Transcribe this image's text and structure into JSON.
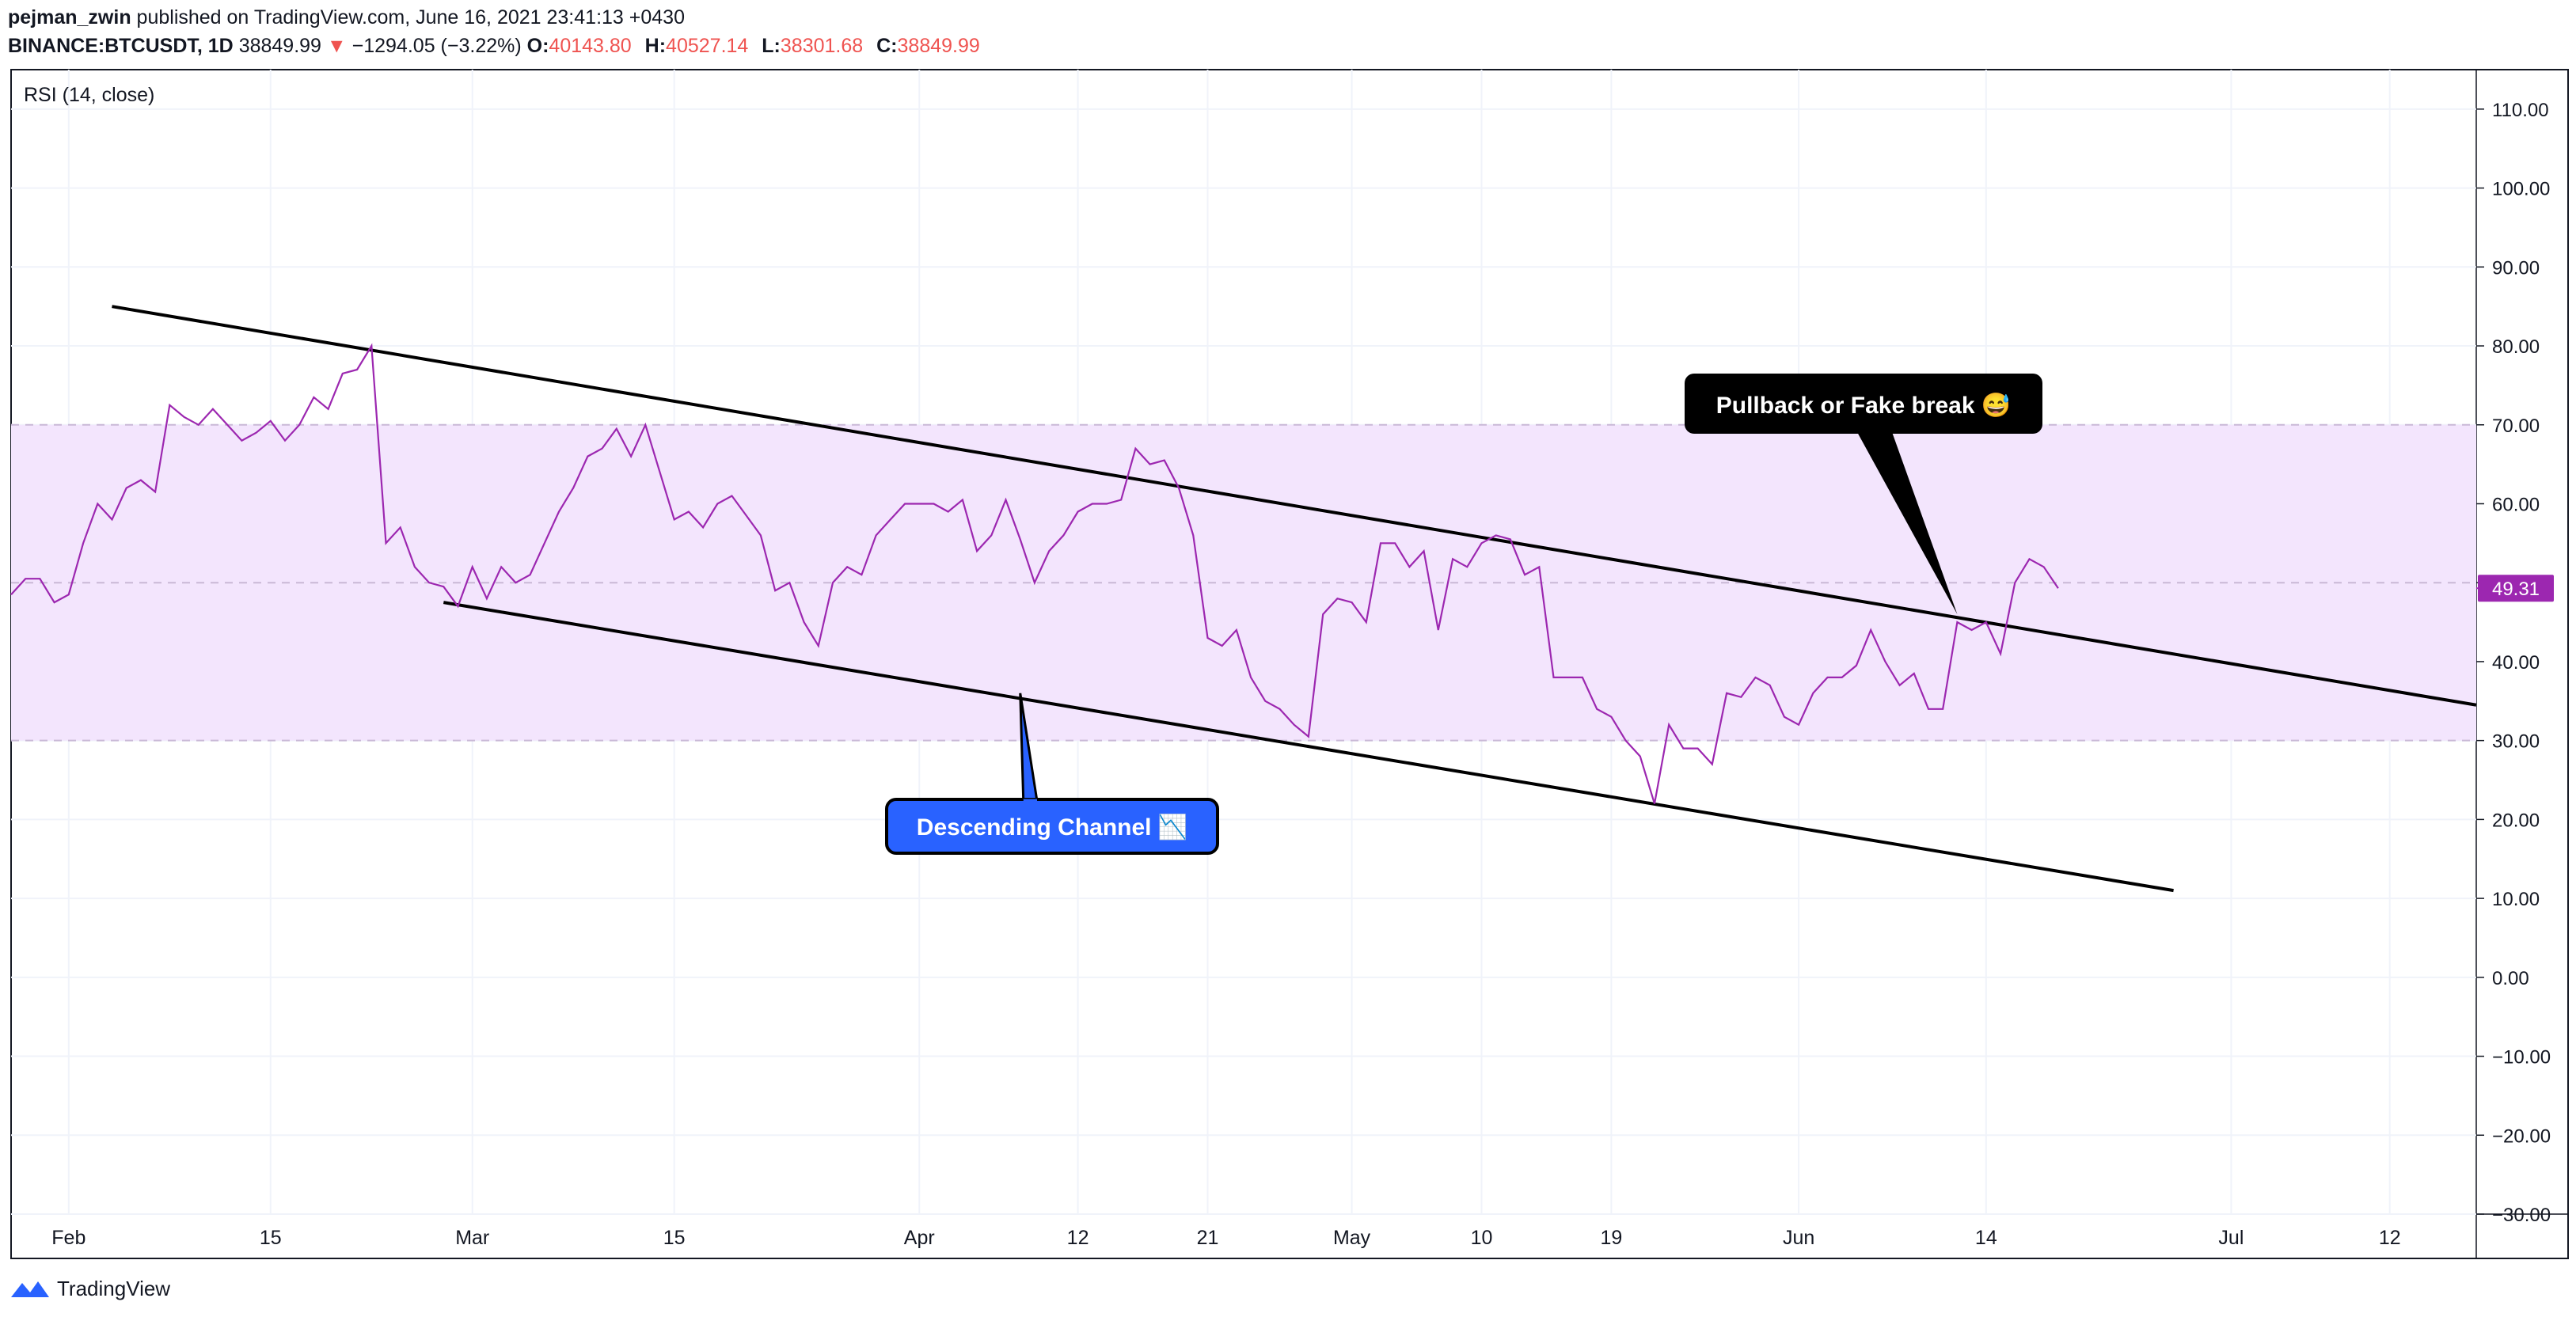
{
  "header": {
    "author": "pejman_zwin",
    "published": "published on TradingView.com, June 16, 2021 23:41:13 +0430",
    "symbol": "BINANCE:BTCUSDT, 1D",
    "last": "38849.99",
    "change": "−1294.05 (−3.22%)",
    "o_label": "O:",
    "o": "40143.80",
    "h_label": "H:",
    "h": "40527.14",
    "l_label": "L:",
    "l": "38301.68",
    "c_label": "C:",
    "c": "38849.99"
  },
  "footer": {
    "brand": "TradingView"
  },
  "colors": {
    "rsi": "#9c27b0",
    "band": "#f3e5fd",
    "band_line": "#c9b8d6",
    "channel": "#000000",
    "bubble_dark": "#000000",
    "bubble_blue": "#2962ff",
    "price_tag": "#9c27b0"
  },
  "chart_data": {
    "type": "line",
    "title": "RSI (14, close)",
    "ylim": [
      -30,
      115
    ],
    "yticks": [
      "110.00",
      "100.00",
      "90.00",
      "80.00",
      "70.00",
      "60.00",
      "50.00",
      "40.00",
      "30.00",
      "20.00",
      "10.00",
      "0.00",
      "−10.00",
      "−20.00",
      "−30.00"
    ],
    "ytick_values": [
      110,
      100,
      90,
      80,
      70,
      60,
      50,
      40,
      30,
      20,
      10,
      0,
      -10,
      -20,
      -30
    ],
    "xticks": [
      {
        "label": "Feb",
        "day": 0
      },
      {
        "label": "15",
        "day": 14
      },
      {
        "label": "Mar",
        "day": 28
      },
      {
        "label": "15",
        "day": 42
      },
      {
        "label": "Apr",
        "day": 59
      },
      {
        "label": "12",
        "day": 70
      },
      {
        "label": "21",
        "day": 79
      },
      {
        "label": "May",
        "day": 89
      },
      {
        "label": "10",
        "day": 98
      },
      {
        "label": "19",
        "day": 107
      },
      {
        "label": "Jun",
        "day": 120
      },
      {
        "label": "14",
        "day": 133
      },
      {
        "label": "Jul",
        "day": 150
      },
      {
        "label": "12",
        "day": 161
      }
    ],
    "x_range_days": [
      -4,
      167
    ],
    "band": {
      "upper": 70,
      "middle": 50,
      "lower": 30
    },
    "last_value_label": "49.31",
    "last_value": 49.3,
    "series": [
      {
        "name": "RSI",
        "start_day": -4,
        "values": [
          48.5,
          50.5,
          50.5,
          47.5,
          48.5,
          55,
          60,
          58,
          62,
          63,
          61.5,
          72.5,
          71,
          70,
          72,
          70,
          68,
          69,
          70.5,
          68,
          70,
          73.5,
          72,
          76.5,
          77,
          80,
          55,
          57,
          52,
          50,
          49.5,
          47,
          52,
          48,
          52,
          50,
          51,
          55,
          59,
          62,
          66,
          67,
          69.5,
          66,
          70,
          64,
          58,
          59,
          57,
          60,
          61,
          58.5,
          56,
          49,
          50,
          45,
          42,
          50,
          52,
          51,
          56,
          58,
          60,
          60,
          60,
          59,
          60.5,
          54,
          56,
          60.5,
          55.5,
          50,
          54,
          56,
          59,
          60,
          60,
          60.5,
          67,
          65,
          65.5,
          62,
          56,
          43,
          42,
          44,
          38,
          35,
          34,
          32,
          30.5,
          46,
          48,
          47.5,
          45,
          55,
          55,
          52,
          54,
          44,
          53,
          52,
          55,
          56,
          55.5,
          51,
          52,
          38,
          38,
          38,
          34,
          33,
          30,
          28,
          22,
          32,
          29,
          29,
          27,
          36,
          35.5,
          38,
          37,
          33,
          32,
          36,
          38,
          38,
          39.5,
          44,
          40,
          37,
          38.5,
          34,
          34,
          45,
          44,
          45,
          41,
          50,
          53,
          52,
          49.3
        ]
      }
    ],
    "channel_upper": [
      {
        "day": 3,
        "value": 85
      },
      {
        "day": 167,
        "value": 34.5
      }
    ],
    "channel_lower": [
      {
        "day": 26,
        "value": 47.5
      },
      {
        "day": 146,
        "value": 11
      }
    ],
    "annotations": [
      {
        "text": "Descending  Channel 📉",
        "style": "blue",
        "day": 66,
        "value": 36
      },
      {
        "text": "Pullback or Fake break 😅",
        "style": "dark",
        "day": 131,
        "value": 46
      }
    ]
  }
}
